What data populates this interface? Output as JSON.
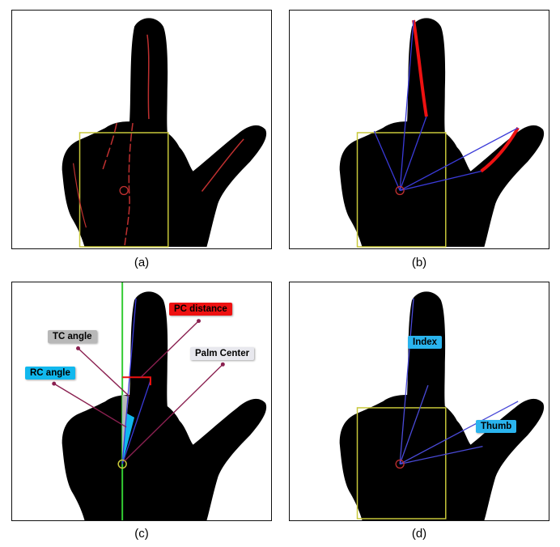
{
  "panels": [
    {
      "caption": "(a)"
    },
    {
      "caption": "(b)"
    },
    {
      "caption": "(c)",
      "labels": {
        "pc_distance": "PC distance",
        "tc_angle": "TC angle",
        "palm_center": "Palm Center",
        "rc_angle": "RC angle"
      }
    },
    {
      "caption": "(d)",
      "labels": {
        "index": "Index",
        "thumb": "Thumb"
      }
    }
  ],
  "colors": {
    "hand": "#000000",
    "box": "#c8c83a",
    "skeleton": "#c03030",
    "fingertip_line": "#3a3ad8",
    "green_axis": "#33cc33",
    "pc_distance_bg": "#ee1111",
    "tc_angle_bg": "#b8b8b8",
    "palm_center_bg": "#e8e8ee",
    "rc_angle_bg": "#11b8ee",
    "finger_tag_bg": "#2ab4ee"
  }
}
